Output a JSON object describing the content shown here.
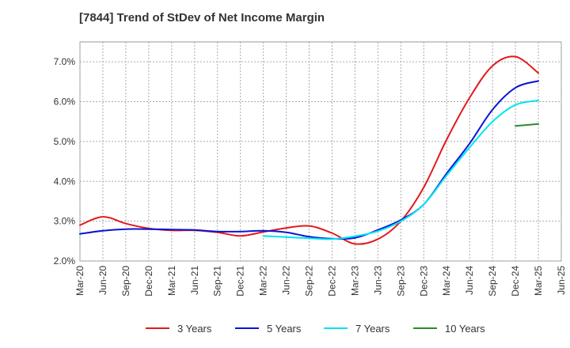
{
  "chart_data": {
    "type": "line",
    "title": "[7844]  Trend of StDev of Net Income Margin",
    "xlabel": "",
    "ylabel": "",
    "x_ticks": [
      "Mar-20",
      "Jun-20",
      "Sep-20",
      "Dec-20",
      "Mar-21",
      "Jun-21",
      "Sep-21",
      "Dec-21",
      "Mar-22",
      "Jun-22",
      "Sep-22",
      "Dec-22",
      "Mar-23",
      "Jun-23",
      "Sep-23",
      "Dec-23",
      "Mar-24",
      "Jun-24",
      "Sep-24",
      "Dec-24",
      "Mar-25",
      "Jun-25"
    ],
    "y_ticks": [
      "2.0%",
      "3.0%",
      "4.0%",
      "5.0%",
      "6.0%",
      "7.0%"
    ],
    "ylim": [
      2.0,
      7.5
    ],
    "grid": true,
    "legend_position": "bottom",
    "series": [
      {
        "name": "3 Years",
        "color": "#e31a1c",
        "x": [
          "Mar-20",
          "Jun-20",
          "Sep-20",
          "Dec-20",
          "Mar-21",
          "Jun-21",
          "Sep-21",
          "Dec-21",
          "Mar-22",
          "Jun-22",
          "Sep-22",
          "Dec-22",
          "Mar-23",
          "Jun-23",
          "Sep-23",
          "Dec-23",
          "Mar-24",
          "Jun-24",
          "Sep-24",
          "Dec-24",
          "Mar-25"
        ],
        "values": [
          2.9,
          3.11,
          2.94,
          2.82,
          2.77,
          2.77,
          2.72,
          2.63,
          2.73,
          2.83,
          2.88,
          2.7,
          2.43,
          2.55,
          3.0,
          3.85,
          5.05,
          6.1,
          6.9,
          7.13,
          6.72
        ]
      },
      {
        "name": "5 Years",
        "color": "#0a14d6",
        "x": [
          "Mar-20",
          "Jun-20",
          "Sep-20",
          "Dec-20",
          "Mar-21",
          "Jun-21",
          "Sep-21",
          "Dec-21",
          "Mar-22",
          "Jun-22",
          "Sep-22",
          "Dec-22",
          "Mar-23",
          "Jun-23",
          "Sep-23",
          "Dec-23",
          "Mar-24",
          "Jun-24",
          "Sep-24",
          "Dec-24",
          "Mar-25"
        ],
        "values": [
          2.68,
          2.76,
          2.8,
          2.8,
          2.79,
          2.78,
          2.74,
          2.74,
          2.76,
          2.72,
          2.61,
          2.56,
          2.58,
          2.78,
          3.03,
          3.42,
          4.2,
          4.95,
          5.8,
          6.35,
          6.52
        ]
      },
      {
        "name": "7 Years",
        "color": "#00e5ee",
        "x": [
          "Mar-22",
          "Jun-22",
          "Sep-22",
          "Dec-22",
          "Mar-23",
          "Jun-23",
          "Sep-23",
          "Dec-23",
          "Mar-24",
          "Jun-24",
          "Sep-24",
          "Dec-24",
          "Mar-25"
        ],
        "values": [
          2.63,
          2.6,
          2.57,
          2.55,
          2.62,
          2.75,
          3.0,
          3.42,
          4.15,
          4.85,
          5.5,
          5.92,
          6.03
        ]
      },
      {
        "name": "10 Years",
        "color": "#2e8b2e",
        "x": [
          "Dec-24",
          "Mar-25"
        ],
        "values": [
          5.39,
          5.44
        ]
      }
    ]
  }
}
